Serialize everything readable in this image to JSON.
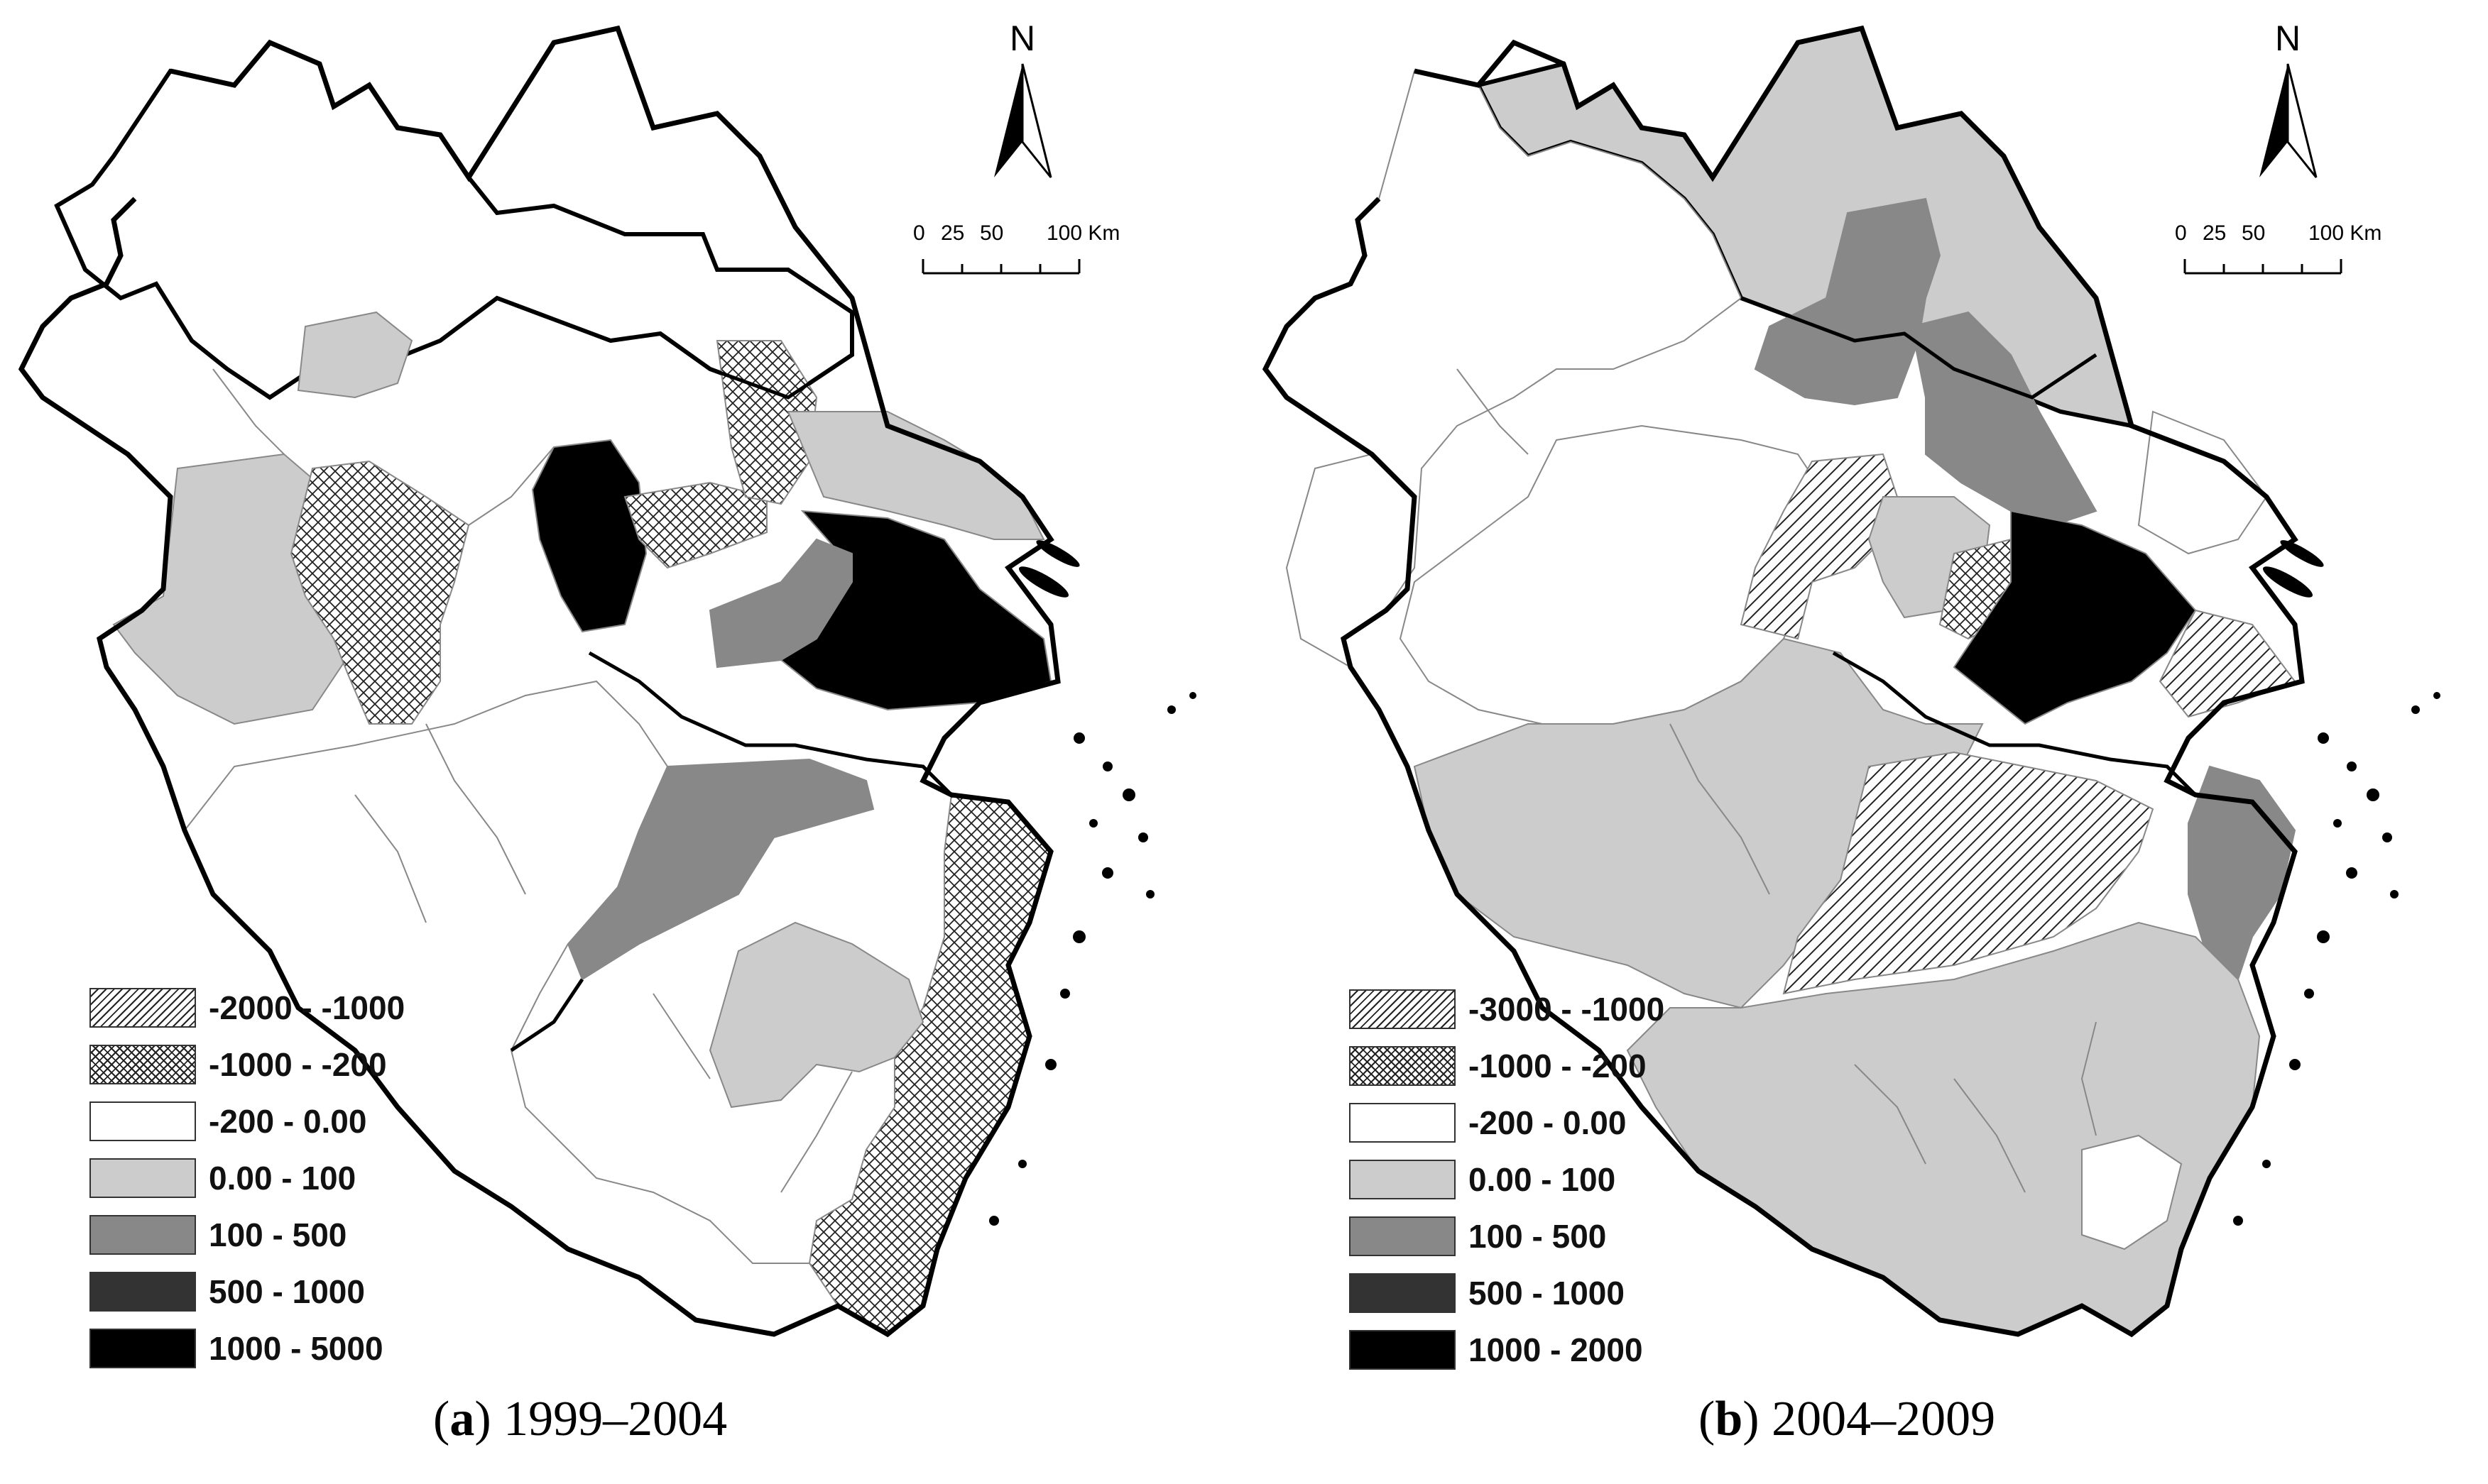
{
  "panels": [
    {
      "id": "a",
      "letter": "a",
      "period": "1999–2004",
      "north": "N",
      "scale_ticks": [
        "0",
        "25",
        "50",
        "100 Km"
      ],
      "legend": [
        {
          "label": "-2000 - -1000",
          "pattern": "diagonal-hatch"
        },
        {
          "label": "-1000 - -200",
          "pattern": "cross-hatch"
        },
        {
          "label": "-200 - 0.00",
          "color": "#ffffff"
        },
        {
          "label": "0.00 - 100",
          "color": "#cccccc"
        },
        {
          "label": "100 - 500",
          "color": "#888888"
        },
        {
          "label": "500 - 1000",
          "color": "#333333"
        },
        {
          "label": "1000 - 5000",
          "color": "#000000"
        }
      ]
    },
    {
      "id": "b",
      "letter": "b",
      "period": "2004–2009",
      "north": "N",
      "scale_ticks": [
        "0",
        "25",
        "50",
        "100 Km"
      ],
      "legend": [
        {
          "label": "-3000 - -1000",
          "pattern": "diagonal-hatch"
        },
        {
          "label": "-1000 - -200",
          "pattern": "cross-hatch"
        },
        {
          "label": "-200 - 0.00",
          "color": "#ffffff"
        },
        {
          "label": "0.00 - 100",
          "color": "#cccccc"
        },
        {
          "label": "100 - 500",
          "color": "#888888"
        },
        {
          "label": "500 - 1000",
          "color": "#333333"
        },
        {
          "label": "1000 - 2000",
          "color": "#000000"
        }
      ]
    }
  ]
}
